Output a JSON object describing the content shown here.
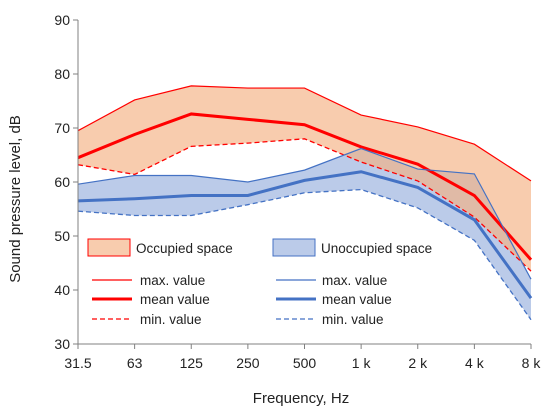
{
  "chart_data": {
    "type": "area",
    "xlabel": "Frequency, Hz",
    "ylabel": "Sound pressure level, dB",
    "categories": [
      "31.5",
      "63",
      "125",
      "250",
      "500",
      "1 k",
      "2 k",
      "4 k",
      "8 k"
    ],
    "ylim": [
      30,
      90
    ],
    "yticks": [
      30,
      40,
      50,
      60,
      70,
      80,
      90
    ],
    "grid": false,
    "legend_placement": "bottom-center",
    "groups": [
      {
        "name": "Occupied space",
        "band_color": "#f4b183",
        "line_color": "#ff0000",
        "series": [
          {
            "name": "max. value",
            "style": "thin",
            "values": [
              69.5,
              75.2,
              77.8,
              77.4,
              77.4,
              72.4,
              70.2,
              67.0,
              60.2
            ]
          },
          {
            "name": "mean value",
            "style": "thick",
            "values": [
              64.5,
              68.8,
              72.6,
              71.6,
              70.6,
              66.5,
              63.3,
              57.5,
              45.6
            ]
          },
          {
            "name": "min. value",
            "style": "dashed",
            "values": [
              63.2,
              61.4,
              66.6,
              67.2,
              68.0,
              63.7,
              60.2,
              53.5,
              43.5
            ]
          }
        ]
      },
      {
        "name": "Unoccupied space",
        "band_color": "#8ea9db",
        "line_color": "#4472c4",
        "series": [
          {
            "name": "max. value",
            "style": "thin",
            "values": [
              59.6,
              61.2,
              61.2,
              60.0,
              62.2,
              66.2,
              62.4,
              61.5,
              42.0
            ]
          },
          {
            "name": "mean value",
            "style": "thick",
            "values": [
              56.5,
              56.9,
              57.5,
              57.5,
              60.3,
              61.9,
              59.0,
              53.0,
              38.5
            ]
          },
          {
            "name": "min. value",
            "style": "dashed",
            "values": [
              54.6,
              53.8,
              53.8,
              55.8,
              58.0,
              58.6,
              55.2,
              49.2,
              34.5
            ]
          }
        ]
      }
    ]
  }
}
